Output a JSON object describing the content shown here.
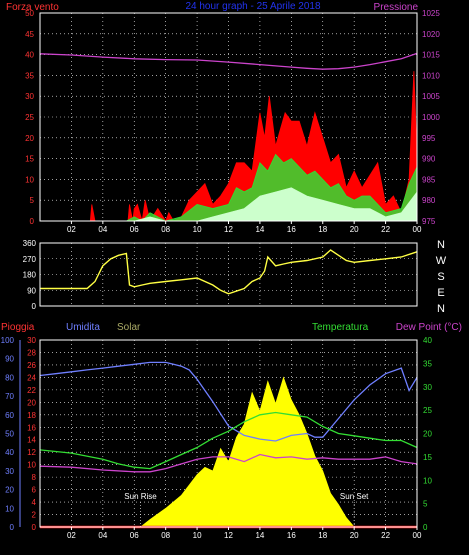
{
  "colors": {
    "wind": "#ff2020",
    "gust": "#ff0000",
    "wind_avg": "#33dd33",
    "wind_min": "#ccffcc",
    "pressure": "#cc44cc",
    "direction": "#ffff44",
    "rain": "#ff2020",
    "humidity": "#6f7fff",
    "solar": "#ffff00",
    "temperature": "#33dd33",
    "dew_point": "#cc44cc",
    "grid": "#ffffff",
    "frame": "#ffffff",
    "axis_left": "#ff3333",
    "axis_right": "#cc44cc",
    "axis_bottom_right": "#33dd33",
    "axis_humidity": "#6f7fff"
  },
  "top_panel": {
    "title": "24 hour graph - 25 Aprile 2018",
    "left_label": "Forza vento",
    "right_label": "Pressione"
  },
  "direction_panel": {
    "compass": [
      "N",
      "W",
      "S",
      "E",
      "N"
    ]
  },
  "bottom_panel": {
    "label_rain": "Pioggia",
    "label_humidity": "Umidita",
    "label_solar": "Solar",
    "label_temperature": "Temperatura",
    "label_dewpoint": "Dew Point (°C)",
    "sunrise": "Sun Rise",
    "sunset": "Sun Set"
  },
  "chart_data": [
    {
      "type": "area",
      "x_ticks": [
        "02",
        "04",
        "06",
        "08",
        "10",
        "12",
        "14",
        "16",
        "18",
        "20",
        "22",
        "00"
      ],
      "x_range": [
        0,
        24
      ],
      "y_left_ticks": [
        "0",
        "5",
        "10",
        "15",
        "20",
        "25",
        "30",
        "35",
        "40",
        "45",
        "50"
      ],
      "y_left_range": [
        0,
        50
      ],
      "y_right_ticks": [
        "975",
        "980",
        "985",
        "990",
        "995",
        "1000",
        "1005",
        "1010",
        "1015",
        "1020",
        "1025"
      ],
      "y_right_range": [
        975,
        1025
      ],
      "grid": true,
      "series": [
        {
          "key": "gust",
          "axis": "left",
          "x": [
            0,
            3.2,
            3.3,
            3.5,
            5.6,
            5.7,
            5.9,
            6.0,
            6.2,
            6.5,
            6.7,
            7.0,
            7.5,
            8.0,
            8.2,
            8.5,
            9.0,
            9.5,
            10.0,
            10.5,
            11.0,
            11.5,
            12.0,
            12.5,
            13.0,
            13.5,
            14.0,
            14.3,
            14.6,
            15.0,
            15.3,
            15.6,
            16.0,
            16.5,
            17.0,
            17.5,
            18.0,
            18.5,
            19.0,
            19.5,
            20.0,
            20.5,
            21.0,
            21.5,
            22.0,
            22.5,
            23.0,
            23.5,
            23.8,
            24.0
          ],
          "values": [
            0,
            0,
            4,
            0,
            0,
            4,
            0,
            3,
            4,
            0,
            5,
            0,
            3,
            0,
            2,
            0,
            1,
            5,
            7,
            9,
            4,
            6,
            9,
            14,
            14,
            12,
            26,
            20,
            30,
            18,
            22,
            26,
            24,
            24,
            18,
            26,
            20,
            14,
            16,
            8,
            12,
            8,
            11,
            14,
            4,
            6,
            2,
            10,
            36,
            16
          ]
        },
        {
          "key": "wind_avg",
          "axis": "left",
          "x": [
            0,
            5.5,
            6.0,
            6.5,
            7.0,
            8.0,
            9.0,
            10.0,
            11.0,
            12.0,
            12.5,
            13.0,
            13.5,
            14.0,
            14.5,
            15.0,
            15.5,
            16.0,
            16.5,
            17.0,
            17.5,
            18.0,
            18.5,
            19.0,
            19.5,
            20.0,
            20.5,
            21.0,
            22.0,
            23.0,
            23.5,
            24.0
          ],
          "values": [
            0,
            0,
            1,
            0,
            2,
            0,
            1,
            4,
            3,
            4,
            8,
            7,
            8,
            14,
            12,
            16,
            14,
            15,
            13,
            11,
            12,
            10,
            8,
            9,
            6,
            5,
            6,
            6,
            2,
            3,
            9,
            13
          ]
        },
        {
          "key": "wind_min",
          "axis": "left",
          "x": [
            0,
            6.0,
            7.0,
            8.0,
            10.0,
            11.0,
            12.0,
            13.0,
            14.0,
            15.0,
            16.0,
            17.0,
            18.0,
            19.0,
            20.0,
            21.0,
            22.0,
            23.0,
            24.0
          ],
          "values": [
            0,
            0,
            1,
            0,
            0,
            1,
            2,
            3,
            6,
            7,
            8,
            6,
            5,
            4,
            3,
            3,
            1,
            2,
            7
          ]
        },
        {
          "key": "pressure",
          "axis": "right",
          "x": [
            0,
            2,
            4,
            6,
            8,
            10,
            12,
            14,
            16,
            17,
            18,
            19,
            20,
            21,
            22,
            23,
            24
          ],
          "values": [
            1015.2,
            1014.9,
            1014.4,
            1014.0,
            1013.8,
            1013.7,
            1013.2,
            1012.6,
            1012.0,
            1011.7,
            1011.5,
            1011.6,
            1012.0,
            1012.6,
            1013.3,
            1014.0,
            1015.3
          ]
        }
      ]
    },
    {
      "type": "line",
      "x_range": [
        0,
        24
      ],
      "y_ticks": [
        "0",
        "90",
        "180",
        "270",
        "360"
      ],
      "y_range": [
        0,
        360
      ],
      "grid": true,
      "series": [
        {
          "key": "direction",
          "x": [
            0,
            3.0,
            3.5,
            4.0,
            4.5,
            5.0,
            5.5,
            5.7,
            6.0,
            6.5,
            7.0,
            8.0,
            9.0,
            10.0,
            11.0,
            11.5,
            12.0,
            13.0,
            13.5,
            14.0,
            14.3,
            14.5,
            15.0,
            15.5,
            16.0,
            17.0,
            18.0,
            18.5,
            19.0,
            19.5,
            20.0,
            21.0,
            22.0,
            23.0,
            24.0
          ],
          "values": [
            100,
            100,
            140,
            230,
            270,
            290,
            300,
            120,
            110,
            120,
            130,
            140,
            150,
            160,
            120,
            90,
            70,
            100,
            140,
            160,
            200,
            280,
            230,
            240,
            250,
            260,
            280,
            320,
            290,
            260,
            250,
            260,
            270,
            280,
            310
          ]
        }
      ]
    },
    {
      "type": "area",
      "x_range": [
        0,
        24
      ],
      "y_left_ticks": [
        "0",
        "2",
        "4",
        "6",
        "8",
        "10",
        "12",
        "14",
        "16",
        "18",
        "20",
        "22",
        "24",
        "26",
        "28",
        "30"
      ],
      "y_left_range": [
        0,
        30
      ],
      "y_humidity_ticks": [
        "0",
        "10",
        "20",
        "30",
        "40",
        "50",
        "60",
        "70",
        "80",
        "90",
        "100"
      ],
      "y_humidity_range": [
        0,
        100
      ],
      "y_right_ticks": [
        "0",
        "5",
        "10",
        "15",
        "20",
        "25",
        "30",
        "35",
        "40"
      ],
      "y_right_range": [
        0,
        40
      ],
      "grid": true,
      "series": [
        {
          "key": "solar",
          "axis": "solar",
          "x": [
            0,
            6.4,
            7.0,
            8.0,
            9.0,
            10.0,
            10.5,
            11.0,
            11.5,
            12.0,
            12.5,
            13.0,
            13.5,
            14.0,
            14.5,
            15.0,
            15.5,
            16.0,
            16.5,
            17.0,
            17.5,
            18.0,
            18.5,
            19.0,
            19.5,
            20.0,
            24.0
          ],
          "values": [
            0,
            0,
            4,
            10,
            17,
            28,
            32,
            30,
            42,
            35,
            48,
            55,
            72,
            62,
            78,
            66,
            80,
            68,
            60,
            50,
            38,
            30,
            18,
            12,
            5,
            0,
            0
          ]
        },
        {
          "key": "humidity",
          "axis": "humidity",
          "x": [
            0,
            1,
            2,
            3,
            4,
            5,
            6,
            7,
            8,
            8.5,
            9,
            9.5,
            10,
            11,
            12,
            13,
            14,
            15,
            16,
            17,
            17.5,
            18,
            19,
            20,
            21,
            22,
            23,
            23.5,
            24
          ],
          "values": [
            81,
            82,
            83,
            84,
            85,
            86,
            87,
            88,
            88,
            87,
            86,
            84,
            79,
            67,
            54,
            49,
            47,
            46,
            49,
            50,
            48,
            48,
            58,
            68,
            76,
            82,
            85,
            73,
            80
          ]
        },
        {
          "key": "temperature",
          "axis": "right",
          "x": [
            0,
            2,
            4,
            5,
            6,
            7,
            8,
            9,
            10,
            11,
            12,
            13,
            14,
            15,
            16,
            17,
            18,
            19,
            20,
            21,
            22,
            23,
            24
          ],
          "values": [
            16.5,
            15.8,
            14.5,
            13.5,
            12.8,
            12.5,
            14.0,
            15.5,
            17.0,
            19.0,
            20.5,
            22.5,
            24.0,
            24.5,
            24.0,
            23.5,
            21.5,
            20.0,
            19.5,
            19.0,
            18.5,
            18.5,
            17.0
          ]
        },
        {
          "key": "dew_point",
          "axis": "right",
          "x": [
            0,
            2,
            4,
            6,
            7,
            8,
            9,
            10,
            11,
            12,
            13,
            14,
            15,
            16,
            17,
            18,
            19,
            20,
            21,
            22,
            23,
            24
          ],
          "values": [
            13.0,
            12.8,
            12.2,
            11.8,
            11.8,
            12.5,
            13.5,
            14.5,
            15.0,
            15.0,
            14.0,
            15.5,
            14.8,
            15.0,
            14.5,
            14.8,
            14.5,
            14.5,
            14.5,
            15.0,
            14.0,
            13.5
          ]
        },
        {
          "key": "rain",
          "axis": "left",
          "x": [
            0,
            24
          ],
          "values": [
            0,
            0
          ]
        }
      ]
    }
  ]
}
